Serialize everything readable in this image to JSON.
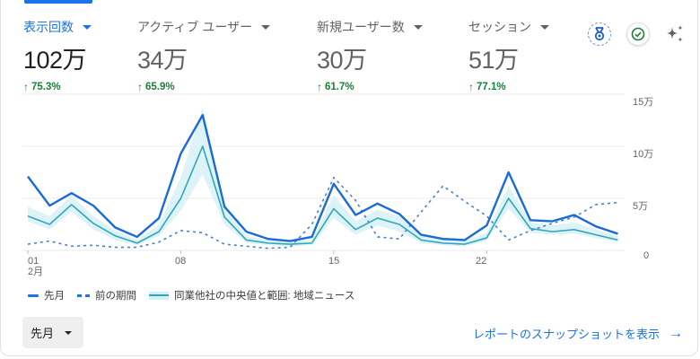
{
  "metrics": [
    {
      "label": "表示回数",
      "value": "102万",
      "delta": "75.3%",
      "active": true
    },
    {
      "label": "アクティブ ユーザー",
      "value": "34万",
      "delta": "65.9%",
      "active": false
    },
    {
      "label": "新規ユーザー数",
      "value": "30万",
      "delta": "61.7%",
      "active": false
    },
    {
      "label": "セッション",
      "value": "51万",
      "delta": "77.1%",
      "active": false
    }
  ],
  "header_icons": [
    "medal-icon",
    "check-circle-icon",
    "sparkle-icon"
  ],
  "colors": {
    "accent": "#1a73e8",
    "positive": "#188038",
    "benchmark_line": "#30a7b8",
    "benchmark_band": "#d3f0f5"
  },
  "chart_data": {
    "type": "line",
    "title": "",
    "xlabel": "",
    "ylabel": "",
    "x": [
      1,
      2,
      3,
      4,
      5,
      6,
      7,
      8,
      9,
      10,
      11,
      12,
      13,
      14,
      15,
      16,
      17,
      18,
      19,
      20,
      21,
      22,
      23,
      24,
      25,
      26,
      27,
      28
    ],
    "x_tick_labels": [
      {
        "day": 1,
        "label": "01",
        "sublabel": "2月"
      },
      {
        "day": 8,
        "label": "08"
      },
      {
        "day": 15,
        "label": "15"
      },
      {
        "day": 22,
        "label": "22"
      }
    ],
    "y_tick_labels": [
      "0",
      "5万",
      "10万",
      "15万"
    ],
    "ylim": [
      0,
      150000
    ],
    "grid": true,
    "legend_position": "bottom",
    "series": [
      {
        "name": "先月",
        "style": "solid",
        "values": [
          71000,
          43000,
          55000,
          43000,
          22000,
          13000,
          31000,
          93000,
          130000,
          42000,
          18000,
          11000,
          9000,
          13000,
          64000,
          34000,
          45000,
          35000,
          15000,
          11000,
          10000,
          24000,
          75000,
          29000,
          28000,
          34000,
          23000,
          16000
        ]
      },
      {
        "name": "前の期間",
        "style": "dashed",
        "values": [
          6000,
          9000,
          4000,
          5000,
          3000,
          3000,
          8000,
          19000,
          17000,
          6000,
          4000,
          2000,
          3000,
          25000,
          70000,
          48000,
          13000,
          11000,
          37000,
          62000,
          47000,
          33000,
          10000,
          19000,
          26000,
          32000,
          44000,
          46000
        ]
      },
      {
        "name": "同業他社の中央値と範囲: 地域ニュース",
        "style": "line-with-band",
        "values": [
          33000,
          25000,
          44000,
          26000,
          14000,
          7000,
          18000,
          50000,
          100000,
          32000,
          10000,
          7000,
          6000,
          7000,
          40000,
          20000,
          31000,
          25000,
          10000,
          7000,
          6000,
          12000,
          50000,
          21000,
          18000,
          20000,
          15000,
          10000
        ],
        "band_low": [
          28000,
          20000,
          37000,
          20000,
          10000,
          5000,
          14000,
          38000,
          73000,
          25000,
          7000,
          5000,
          4000,
          5000,
          31000,
          15000,
          24000,
          18000,
          7000,
          5000,
          4000,
          9000,
          40000,
          17000,
          15000,
          16000,
          12000,
          8000
        ],
        "band_high": [
          42000,
          33000,
          53000,
          33000,
          19000,
          10000,
          25000,
          70000,
          137000,
          42000,
          14000,
          10000,
          9000,
          10000,
          53000,
          28000,
          39000,
          33000,
          14000,
          10000,
          9000,
          17000,
          62000,
          27000,
          24000,
          27000,
          20000,
          14000
        ]
      }
    ]
  },
  "legend": {
    "items": [
      {
        "label": "先月"
      },
      {
        "label": "前の期間"
      },
      {
        "label": "同業他社の中央値と範囲: 地域ニュース"
      }
    ]
  },
  "footer": {
    "period_select": "先月",
    "snapshot_link": "レポートのスナップショットを表示",
    "snapshot_arrow": "→"
  }
}
